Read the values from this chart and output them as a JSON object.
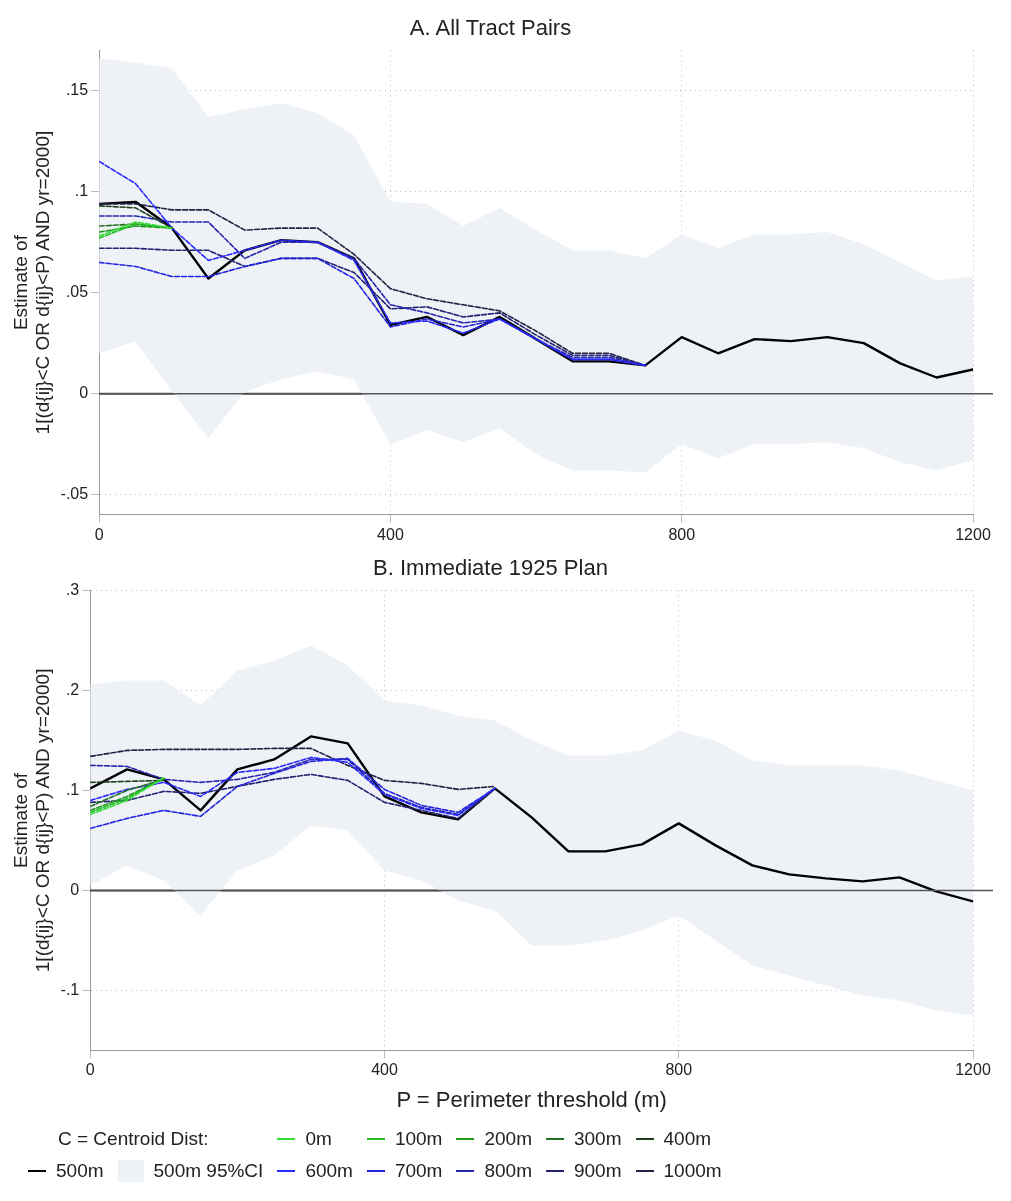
{
  "chart_data": [
    {
      "type": "line",
      "title": "A. All Tract Pairs",
      "ylabel": "Estimate of\n1[(d{ij}<C OR d{ij}<P) AND yr=2000]",
      "x": [
        0,
        50,
        100,
        150,
        200,
        250,
        300,
        350,
        400,
        450,
        500,
        550,
        600,
        650,
        700,
        750,
        800,
        850,
        900,
        950,
        1000,
        1050,
        1100,
        1150,
        1200
      ],
      "xlim": [
        0,
        1200
      ],
      "xticks": [
        0,
        400,
        800,
        1200
      ],
      "ylim": [
        -0.06,
        0.17
      ],
      "yticks": [
        {
          "value": -0.05,
          "label": "-.05"
        },
        0,
        {
          "value": 0.05,
          "label": ".05"
        },
        {
          "value": 0.1,
          "label": ".1"
        },
        {
          "value": 0.15,
          "label": ".15"
        }
      ],
      "grid": true,
      "marker": "none",
      "legend": false,
      "ref_lines": [
        {
          "axis": "y",
          "value": 0,
          "color": "#555555"
        }
      ],
      "series": [
        {
          "type": "area",
          "color": "#eef2f7",
          "values": [
            null,
            null,
            null,
            null,
            null,
            null,
            null,
            null,
            null,
            null,
            null,
            null,
            null,
            null,
            null,
            null,
            null,
            null,
            null,
            null,
            null,
            null,
            null,
            null,
            null
          ],
          "lower": [
            0.02,
            0.026,
            0.001,
            -0.022,
            0.001,
            0.007,
            0.011,
            0.007,
            -0.025,
            -0.018,
            -0.024,
            -0.017,
            -0.03,
            -0.038,
            -0.038,
            -0.039,
            -0.025,
            -0.032,
            -0.025,
            -0.025,
            -0.024,
            -0.027,
            -0.034,
            -0.038,
            -0.033
          ],
          "upper": [
            0.166,
            0.164,
            0.161,
            0.137,
            0.141,
            0.144,
            0.139,
            0.128,
            0.095,
            0.094,
            0.083,
            0.092,
            0.081,
            0.071,
            0.071,
            0.067,
            0.079,
            0.072,
            0.079,
            0.079,
            0.08,
            0.074,
            0.065,
            0.056,
            0.058
          ]
        },
        {
          "color": "#33dd33",
          "line_style": "dashed",
          "values": [
            0.078,
            0.085,
            0.082,
            null,
            null,
            null,
            null,
            null,
            null,
            null,
            null,
            null,
            null,
            null,
            null,
            null,
            null,
            null,
            null,
            null,
            null,
            null,
            null,
            null,
            null
          ]
        },
        {
          "color": "#22bb22",
          "line_style": "dashed",
          "values": [
            0.077,
            0.084,
            0.082,
            null,
            null,
            null,
            null,
            null,
            null,
            null,
            null,
            null,
            null,
            null,
            null,
            null,
            null,
            null,
            null,
            null,
            null,
            null,
            null,
            null,
            null
          ]
        },
        {
          "color": "#1f9a1f",
          "line_style": "dashed",
          "values": [
            0.08,
            0.083,
            0.082,
            null,
            null,
            null,
            null,
            null,
            null,
            null,
            null,
            null,
            null,
            null,
            null,
            null,
            null,
            null,
            null,
            null,
            null,
            null,
            null,
            null,
            null
          ]
        },
        {
          "color": "#227022",
          "line_style": "dashed",
          "values": [
            0.083,
            0.084,
            0.082,
            null,
            null,
            null,
            null,
            null,
            null,
            null,
            null,
            null,
            null,
            null,
            null,
            null,
            null,
            null,
            null,
            null,
            null,
            null,
            null,
            null,
            null
          ]
        },
        {
          "color": "#1f3f1f",
          "line_style": "dashed",
          "values": [
            0.093,
            0.092,
            0.082,
            null,
            null,
            null,
            null,
            null,
            null,
            null,
            null,
            null,
            null,
            null,
            null,
            null,
            null,
            null,
            null,
            null,
            null,
            null,
            null,
            null,
            null
          ]
        },
        {
          "color": "#000000",
          "line_style": "solid",
          "values": [
            0.094,
            0.095,
            0.082,
            0.057,
            0.071,
            0.076,
            0.075,
            0.067,
            0.034,
            0.038,
            0.029,
            0.038,
            0.027,
            0.016,
            0.016,
            0.014,
            0.028,
            0.02,
            0.027,
            0.026,
            0.028,
            0.025,
            0.015,
            0.008,
            0.012
          ]
        },
        {
          "color": "#2a2aff",
          "line_style": "dashed",
          "values": [
            0.115,
            0.104,
            0.082,
            0.066,
            0.071,
            0.076,
            0.075,
            0.066,
            0.035,
            0.036,
            0.03,
            0.037,
            0.027,
            0.017,
            0.017,
            0.014,
            null,
            null,
            null,
            null,
            null,
            null,
            null,
            null,
            null
          ]
        },
        {
          "color": "#2424dd",
          "line_style": "dashed",
          "values": [
            0.065,
            0.063,
            0.058,
            0.058,
            0.063,
            0.067,
            0.067,
            0.057,
            0.033,
            0.037,
            0.033,
            0.037,
            0.027,
            0.017,
            0.017,
            0.014,
            null,
            null,
            null,
            null,
            null,
            null,
            null,
            null,
            null
          ]
        },
        {
          "color": "#2626aa",
          "line_style": "dashed",
          "values": [
            0.088,
            0.088,
            0.085,
            0.085,
            0.067,
            0.075,
            0.075,
            0.067,
            0.044,
            0.04,
            0.035,
            0.037,
            0.027,
            0.018,
            0.018,
            0.014,
            null,
            null,
            null,
            null,
            null,
            null,
            null,
            null,
            null
          ]
        },
        {
          "color": "#222270",
          "line_style": "dashed",
          "values": [
            0.072,
            0.072,
            0.071,
            0.071,
            0.063,
            0.067,
            0.067,
            0.06,
            0.042,
            0.043,
            0.038,
            0.04,
            0.029,
            0.019,
            0.019,
            0.014,
            null,
            null,
            null,
            null,
            null,
            null,
            null,
            null,
            null
          ]
        },
        {
          "color": "#222244",
          "line_style": "dashed",
          "values": [
            0.094,
            0.094,
            0.091,
            0.091,
            0.081,
            0.082,
            0.082,
            0.069,
            0.052,
            0.047,
            0.044,
            0.041,
            0.031,
            0.02,
            0.02,
            0.014,
            null,
            null,
            null,
            null,
            null,
            null,
            null,
            null,
            null
          ]
        }
      ]
    },
    {
      "type": "line",
      "title": "B. Immediate 1925 Plan",
      "ylabel": "Estimate of\n1[(d{ij}<C OR d{ij}<P) AND yr=2000]",
      "xlabel": "P = Perimeter threshold (m)",
      "legend_title": "C = Centroid Dist:",
      "x": [
        0,
        50,
        100,
        150,
        200,
        250,
        300,
        350,
        400,
        450,
        500,
        550,
        600,
        650,
        700,
        750,
        800,
        850,
        900,
        950,
        1000,
        1050,
        1100,
        1150,
        1200
      ],
      "xlim": [
        0,
        1200
      ],
      "xticks": [
        0,
        400,
        800,
        1200
      ],
      "ylim": [
        -0.16,
        0.3
      ],
      "yticks": [
        {
          "value": -0.1,
          "label": "-.1"
        },
        0,
        {
          "value": 0.1,
          "label": ".1"
        },
        {
          "value": 0.2,
          "label": ".2"
        },
        {
          "value": 0.3,
          "label": ".3"
        }
      ],
      "grid": true,
      "marker": "none",
      "legend": "bottom",
      "ref_lines": [
        {
          "axis": "y",
          "value": 0,
          "color": "#555555"
        }
      ],
      "series": [
        {
          "name": "0m",
          "color": "#33dd33",
          "line_style": "dashed",
          "values": [
            0.076,
            0.09,
            0.113,
            null,
            null,
            null,
            null,
            null,
            null,
            null,
            null,
            null,
            null,
            null,
            null,
            null,
            null,
            null,
            null,
            null,
            null,
            null,
            null,
            null,
            null
          ]
        },
        {
          "name": "100m",
          "color": "#22bb22",
          "line_style": "dashed",
          "values": [
            0.078,
            0.092,
            0.112,
            null,
            null,
            null,
            null,
            null,
            null,
            null,
            null,
            null,
            null,
            null,
            null,
            null,
            null,
            null,
            null,
            null,
            null,
            null,
            null,
            null,
            null
          ]
        },
        {
          "name": "200m",
          "color": "#1f9a1f",
          "line_style": "dashed",
          "values": [
            0.08,
            0.094,
            0.112,
            null,
            null,
            null,
            null,
            null,
            null,
            null,
            null,
            null,
            null,
            null,
            null,
            null,
            null,
            null,
            null,
            null,
            null,
            null,
            null,
            null,
            null
          ]
        },
        {
          "name": "300m",
          "color": "#227022",
          "line_style": "dashed",
          "values": [
            0.084,
            0.1,
            0.111,
            null,
            null,
            null,
            null,
            null,
            null,
            null,
            null,
            null,
            null,
            null,
            null,
            null,
            null,
            null,
            null,
            null,
            null,
            null,
            null,
            null,
            null
          ]
        },
        {
          "name": "400m",
          "color": "#1f3f1f",
          "line_style": "dashed",
          "values": [
            0.108,
            0.109,
            0.11,
            null,
            null,
            null,
            null,
            null,
            null,
            null,
            null,
            null,
            null,
            null,
            null,
            null,
            null,
            null,
            null,
            null,
            null,
            null,
            null,
            null,
            null
          ]
        },
        {
          "name": "500m",
          "color": "#000000",
          "line_style": "solid",
          "values": [
            0.102,
            0.121,
            0.111,
            0.08,
            0.121,
            0.131,
            0.154,
            0.147,
            0.094,
            0.078,
            0.071,
            0.102,
            0.073,
            0.039,
            0.039,
            0.046,
            0.067,
            0.045,
            0.025,
            0.016,
            0.012,
            0.009,
            0.013,
            -0.001,
            -0.011
          ]
        },
        {
          "name": "500m 95%CI",
          "type": "area",
          "color": "#eef2f7",
          "values": [
            null,
            null,
            null,
            null,
            null,
            null,
            null,
            null,
            null,
            null,
            null,
            null,
            null,
            null,
            null,
            null,
            null,
            null,
            null,
            null,
            null,
            null,
            null,
            null,
            null
          ],
          "lower": [
            0.005,
            0.025,
            0.01,
            -0.025,
            0.02,
            0.035,
            0.065,
            0.06,
            0.02,
            0.01,
            -0.01,
            -0.02,
            -0.055,
            -0.055,
            -0.05,
            -0.04,
            -0.025,
            -0.05,
            -0.075,
            -0.085,
            -0.095,
            -0.105,
            -0.11,
            -0.12,
            -0.125
          ],
          "upper": [
            0.206,
            0.21,
            0.21,
            0.185,
            0.22,
            0.23,
            0.245,
            0.225,
            0.19,
            0.185,
            0.175,
            0.17,
            0.15,
            0.135,
            0.135,
            0.14,
            0.16,
            0.15,
            0.13,
            0.125,
            0.125,
            0.125,
            0.12,
            0.11,
            0.1
          ]
        },
        {
          "name": "600m",
          "color": "#2a2aff",
          "line_style": "dashed",
          "values": [
            0.09,
            0.101,
            0.108,
            0.094,
            0.118,
            0.122,
            0.133,
            0.128,
            0.096,
            0.082,
            0.075,
            0.102,
            null,
            null,
            null,
            null,
            null,
            null,
            null,
            null,
            null,
            null,
            null,
            null,
            null
          ]
        },
        {
          "name": "700m",
          "color": "#2424dd",
          "line_style": "dashed",
          "values": [
            0.062,
            0.072,
            0.08,
            0.074,
            0.104,
            0.117,
            0.129,
            0.132,
            0.101,
            0.085,
            0.078,
            0.102,
            null,
            null,
            null,
            null,
            null,
            null,
            null,
            null,
            null,
            null,
            null,
            null,
            null
          ]
        },
        {
          "name": "800m",
          "color": "#2626aa",
          "line_style": "dashed",
          "values": [
            0.125,
            0.124,
            0.111,
            0.108,
            0.111,
            0.118,
            0.131,
            0.131,
            0.097,
            0.083,
            0.076,
            0.102,
            null,
            null,
            null,
            null,
            null,
            null,
            null,
            null,
            null,
            null,
            null,
            null,
            null
          ]
        },
        {
          "name": "900m",
          "color": "#222270",
          "line_style": "dashed",
          "values": [
            0.088,
            0.09,
            0.099,
            0.097,
            0.104,
            0.111,
            0.116,
            0.11,
            0.088,
            0.08,
            0.072,
            0.102,
            null,
            null,
            null,
            null,
            null,
            null,
            null,
            null,
            null,
            null,
            null,
            null,
            null
          ]
        },
        {
          "name": "1000m",
          "color": "#222244",
          "line_style": "dashed",
          "values": [
            0.134,
            0.14,
            0.141,
            0.141,
            0.141,
            0.142,
            0.142,
            0.125,
            0.11,
            0.107,
            0.101,
            0.104,
            null,
            null,
            null,
            null,
            null,
            null,
            null,
            null,
            null,
            null,
            null,
            null,
            null
          ]
        }
      ]
    }
  ]
}
